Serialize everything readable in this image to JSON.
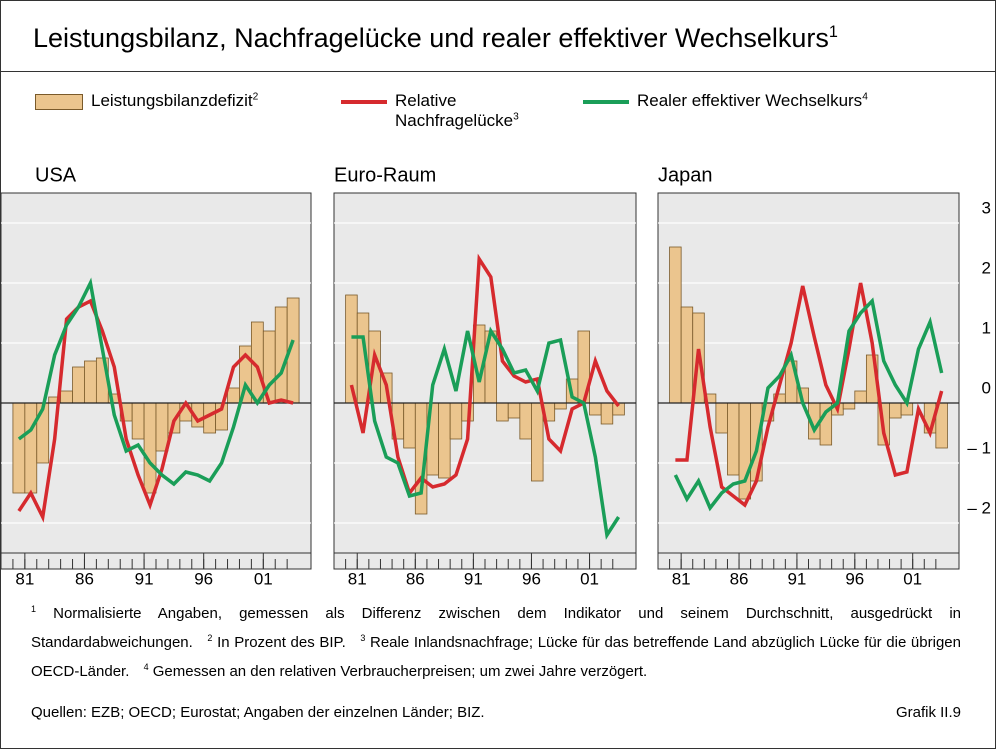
{
  "title": "Leistungsbilanz, Nachfragelücke und realer effektiver Wechselkurs",
  "title_sup": "1",
  "legend": [
    {
      "name": "Leistungsbilanzdefizit",
      "sup": "2",
      "color": "#ebc58e"
    },
    {
      "name": "Relative Nachfragelücke",
      "sup": "3",
      "color": "#d62a2e"
    },
    {
      "name": "Realer effektiver Wechselkurs",
      "sup": "4",
      "color": "#1a9e58"
    }
  ],
  "axis": {
    "ylim": [
      -2.5,
      3.5
    ],
    "yticks": [
      3,
      2,
      1,
      0,
      {
        "value": -1,
        "label": "– 1"
      },
      {
        "value": -2,
        "label": "– 2"
      }
    ],
    "xlim": [
      1978.5,
      2004.5
    ],
    "grid": true
  },
  "chart_data": [
    {
      "type": "bar_line",
      "title": "USA",
      "x": [
        1980,
        1981,
        1982,
        1983,
        1984,
        1985,
        1986,
        1987,
        1988,
        1989,
        1990,
        1991,
        1992,
        1993,
        1994,
        1995,
        1996,
        1997,
        1998,
        1999,
        2000,
        2001,
        2002,
        2003
      ],
      "xticks": [
        {
          "value": 1981,
          "label": "81"
        },
        {
          "value": 1986,
          "label": "86"
        },
        {
          "value": 1991,
          "label": "91"
        },
        {
          "value": 1996,
          "label": "96"
        },
        {
          "value": 2001,
          "label": "01"
        }
      ],
      "series": [
        {
          "kind": "bar",
          "values": [
            -1.5,
            -1.5,
            -1.0,
            0.1,
            0.2,
            0.6,
            0.7,
            0.75,
            0.15,
            -0.3,
            -0.6,
            -1.5,
            -0.8,
            -0.5,
            -0.3,
            -0.4,
            -0.5,
            -0.45,
            0.25,
            0.95,
            1.35,
            1.2,
            1.6,
            1.75
          ]
        },
        {
          "kind": "line",
          "values": [
            -1.8,
            -1.5,
            -1.9,
            -0.6,
            1.4,
            1.6,
            1.7,
            1.2,
            0.6,
            -0.6,
            -1.2,
            -1.7,
            -1.1,
            -0.3,
            0.0,
            -0.3,
            -0.2,
            -0.1,
            0.6,
            0.8,
            0.6,
            0.0,
            0.05,
            0.0
          ]
        },
        {
          "kind": "line",
          "values": [
            -0.6,
            -0.45,
            -0.1,
            0.8,
            1.3,
            1.6,
            2.0,
            0.9,
            -0.2,
            -0.8,
            -0.7,
            -1.0,
            -1.2,
            -1.35,
            -1.15,
            -1.2,
            -1.3,
            -1.0,
            -0.4,
            0.3,
            0.0,
            0.3,
            0.5,
            1.05
          ]
        }
      ]
    },
    {
      "type": "bar_line",
      "title": "Euro-Raum",
      "x": [
        1980,
        1981,
        1982,
        1983,
        1984,
        1985,
        1986,
        1987,
        1988,
        1989,
        1990,
        1991,
        1992,
        1993,
        1994,
        1995,
        1996,
        1997,
        1998,
        1999,
        2000,
        2001,
        2002,
        2003
      ],
      "xticks": [
        {
          "value": 1981,
          "label": "81"
        },
        {
          "value": 1986,
          "label": "86"
        },
        {
          "value": 1991,
          "label": "91"
        },
        {
          "value": 1996,
          "label": "96"
        },
        {
          "value": 2001,
          "label": "01"
        }
      ],
      "series": [
        {
          "kind": "bar",
          "values": [
            1.8,
            1.5,
            1.2,
            0.5,
            -0.6,
            -0.75,
            -1.85,
            -1.2,
            -1.25,
            -0.6,
            -0.3,
            1.3,
            1.2,
            -0.3,
            -0.25,
            -0.6,
            -1.3,
            -0.3,
            -0.1,
            0.4,
            1.2,
            -0.2,
            -0.35,
            -0.2
          ]
        },
        {
          "kind": "line",
          "values": [
            0.3,
            -0.5,
            0.8,
            0.3,
            -0.9,
            -1.5,
            -1.25,
            -1.4,
            -1.35,
            -1.2,
            -0.6,
            2.4,
            2.1,
            0.7,
            0.45,
            0.35,
            0.4,
            -0.6,
            -0.8,
            -0.1,
            0.0,
            0.7,
            0.2,
            -0.05
          ]
        },
        {
          "kind": "line",
          "values": [
            1.1,
            1.1,
            -0.3,
            -0.9,
            -1.0,
            -1.55,
            -1.5,
            0.3,
            0.9,
            0.2,
            1.2,
            0.35,
            1.2,
            0.9,
            0.5,
            0.55,
            0.2,
            1.0,
            1.05,
            0.1,
            0.0,
            -0.9,
            -2.2,
            -1.9
          ]
        }
      ]
    },
    {
      "type": "bar_line",
      "title": "Japan",
      "x": [
        1980,
        1981,
        1982,
        1983,
        1984,
        1985,
        1986,
        1987,
        1988,
        1989,
        1990,
        1991,
        1992,
        1993,
        1994,
        1995,
        1996,
        1997,
        1998,
        1999,
        2000,
        2001,
        2002,
        2003
      ],
      "xticks": [
        {
          "value": 1981,
          "label": "81"
        },
        {
          "value": 1986,
          "label": "86"
        },
        {
          "value": 1991,
          "label": "91"
        },
        {
          "value": 1996,
          "label": "96"
        },
        {
          "value": 2001,
          "label": "01"
        }
      ],
      "series": [
        {
          "kind": "bar",
          "values": [
            2.6,
            1.6,
            1.5,
            0.15,
            -0.5,
            -1.2,
            -1.6,
            -1.3,
            -0.3,
            0.15,
            0.7,
            0.25,
            -0.6,
            -0.7,
            -0.2,
            -0.1,
            0.2,
            0.8,
            -0.7,
            -0.25,
            -0.2,
            0.0,
            -0.5,
            -0.75
          ]
        },
        {
          "kind": "line",
          "values": [
            -0.95,
            -0.95,
            0.9,
            -0.4,
            -1.4,
            -1.55,
            -1.7,
            -1.3,
            -0.4,
            0.3,
            1.0,
            1.95,
            1.1,
            0.3,
            -0.1,
            0.9,
            2.0,
            1.0,
            -0.5,
            -1.2,
            -1.15,
            -0.1,
            -0.5,
            0.2
          ]
        },
        {
          "kind": "line",
          "values": [
            -1.2,
            -1.6,
            -1.3,
            -1.75,
            -1.5,
            -1.35,
            -1.3,
            -0.8,
            0.25,
            0.45,
            0.8,
            0.0,
            -0.45,
            -0.15,
            0.0,
            1.2,
            1.5,
            1.7,
            0.7,
            0.3,
            0.0,
            0.9,
            1.35,
            0.5
          ]
        }
      ]
    }
  ],
  "notes": [
    {
      "sup": "1",
      "text": "Normalisierte Angaben, gemessen als Differenz zwischen dem Indikator und seinem Durchschnitt, ausgedrückt in Standardabweichungen."
    },
    {
      "sup": "2",
      "text": "In Prozent des BIP."
    },
    {
      "sup": "3",
      "text": "Reale Inlandsnachfrage; Lücke für das betreffende Land abzüglich Lücke für die übrigen OECD-Länder."
    },
    {
      "sup": "4",
      "text": "Gemessen an den relativen Verbraucherpreisen; um zwei Jahre verzögert."
    }
  ],
  "sources": "Quellen: EZB; OECD; Eurostat; Angaben der einzelnen Länder; BIZ.",
  "figure_label": "Grafik II.9"
}
